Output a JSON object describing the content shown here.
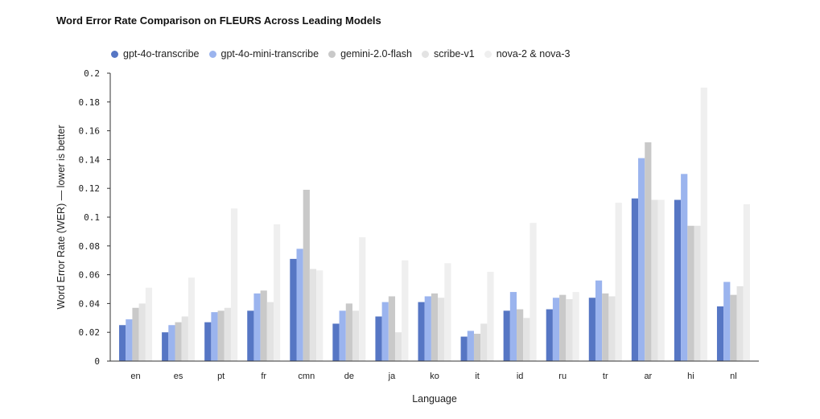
{
  "chart_data": {
    "type": "bar",
    "title": "Word Error Rate Comparison on FLEURS Across Leading Models",
    "xlabel": "Language",
    "ylabel": "Word Error Rate (WER) — lower is better",
    "ylim": [
      0,
      0.2
    ],
    "yticks": [
      "0",
      "0.02",
      "0.04",
      "0.06",
      "0.08",
      "0.1",
      "0.12",
      "0.14",
      "0.16",
      "0.18",
      "0.2"
    ],
    "grid": false,
    "legend_position": "top-left",
    "categories": [
      "en",
      "es",
      "pt",
      "fr",
      "cmn",
      "de",
      "ja",
      "ko",
      "it",
      "id",
      "ru",
      "tr",
      "ar",
      "hi",
      "nl"
    ],
    "series": [
      {
        "name": "gpt-4o-transcribe",
        "color": "#5676c4",
        "values": [
          0.025,
          0.02,
          0.027,
          0.035,
          0.071,
          0.026,
          0.031,
          0.041,
          0.017,
          0.035,
          0.036,
          0.044,
          0.113,
          0.112,
          0.038
        ]
      },
      {
        "name": "gpt-4o-mini-transcribe",
        "color": "#9bb4ee",
        "values": [
          0.029,
          0.025,
          0.034,
          0.047,
          0.078,
          0.035,
          0.041,
          0.045,
          0.021,
          0.048,
          0.044,
          0.056,
          0.141,
          0.13,
          0.055
        ]
      },
      {
        "name": "gemini-2.0-flash",
        "color": "#c9c9c9",
        "values": [
          0.037,
          0.027,
          0.035,
          0.049,
          0.119,
          0.04,
          0.045,
          0.047,
          0.019,
          0.036,
          0.046,
          0.047,
          0.152,
          0.094,
          0.046
        ]
      },
      {
        "name": "scribe-v1",
        "color": "#e3e3e3",
        "values": [
          0.04,
          0.031,
          0.037,
          0.041,
          0.064,
          0.035,
          0.02,
          0.044,
          0.026,
          0.03,
          0.043,
          0.045,
          0.112,
          0.094,
          0.052
        ]
      },
      {
        "name": "nova-2 & nova-3",
        "color": "#efefef",
        "values": [
          0.051,
          0.058,
          0.106,
          0.095,
          0.063,
          0.086,
          0.07,
          0.068,
          0.062,
          0.096,
          0.048,
          0.11,
          0.112,
          0.19,
          0.109
        ]
      }
    ]
  }
}
